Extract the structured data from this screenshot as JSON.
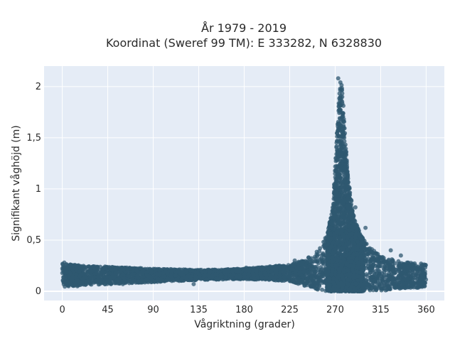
{
  "chart_data": {
    "type": "scatter",
    "title_lines": [
      "År 1979 - 2019",
      "Koordinat (Sweref 99 TM): E 333282, N 6328830"
    ],
    "xlabel": "Vågriktning (grader)",
    "ylabel": "Signifikant våghöjd (m)",
    "xlim": [
      -18,
      378
    ],
    "ylim": [
      -0.09,
      2.2
    ],
    "xticks": [
      0,
      45,
      90,
      135,
      180,
      225,
      270,
      315,
      360
    ],
    "yticks": [
      0,
      0.5,
      1,
      1.5,
      2
    ],
    "xtick_labels": [
      "0",
      "45",
      "90",
      "135",
      "180",
      "225",
      "270",
      "315",
      "360"
    ],
    "ytick_labels": [
      "0",
      "0,5",
      "1",
      "1,5",
      "2"
    ],
    "grid": true,
    "background_color": "#e5ecf6",
    "point_color": "#2f5870",
    "envelope": {
      "x": [
        0,
        20,
        45,
        90,
        135,
        180,
        225,
        250,
        262,
        268,
        272,
        275,
        277,
        280,
        283,
        288,
        295,
        305,
        315,
        330,
        345,
        360
      ],
      "lower": [
        0.04,
        0.06,
        0.07,
        0.09,
        0.11,
        0.12,
        0.1,
        0.02,
        0.0,
        0.0,
        0.0,
        0.0,
        0.0,
        0.0,
        0.0,
        0.0,
        0.0,
        0.0,
        0.0,
        0.02,
        0.03,
        0.04
      ],
      "upper": [
        0.27,
        0.25,
        0.24,
        0.22,
        0.21,
        0.22,
        0.26,
        0.36,
        0.55,
        0.85,
        1.6,
        2.05,
        2.0,
        1.5,
        1.1,
        0.75,
        0.55,
        0.42,
        0.35,
        0.3,
        0.28,
        0.26
      ]
    },
    "outliers": [
      {
        "x": 2,
        "y": 0.28
      },
      {
        "x": 15,
        "y": 0.05
      },
      {
        "x": 60,
        "y": 0.07
      },
      {
        "x": 130,
        "y": 0.07
      },
      {
        "x": 182,
        "y": 0.23
      },
      {
        "x": 230,
        "y": 0.3
      },
      {
        "x": 255,
        "y": 0.42
      },
      {
        "x": 270,
        "y": 0.9
      },
      {
        "x": 273,
        "y": 2.08
      },
      {
        "x": 290,
        "y": 0.82
      },
      {
        "x": 300,
        "y": 0.62
      },
      {
        "x": 325,
        "y": 0.4
      },
      {
        "x": 335,
        "y": 0.35
      },
      {
        "x": 355,
        "y": 0.27
      }
    ]
  }
}
